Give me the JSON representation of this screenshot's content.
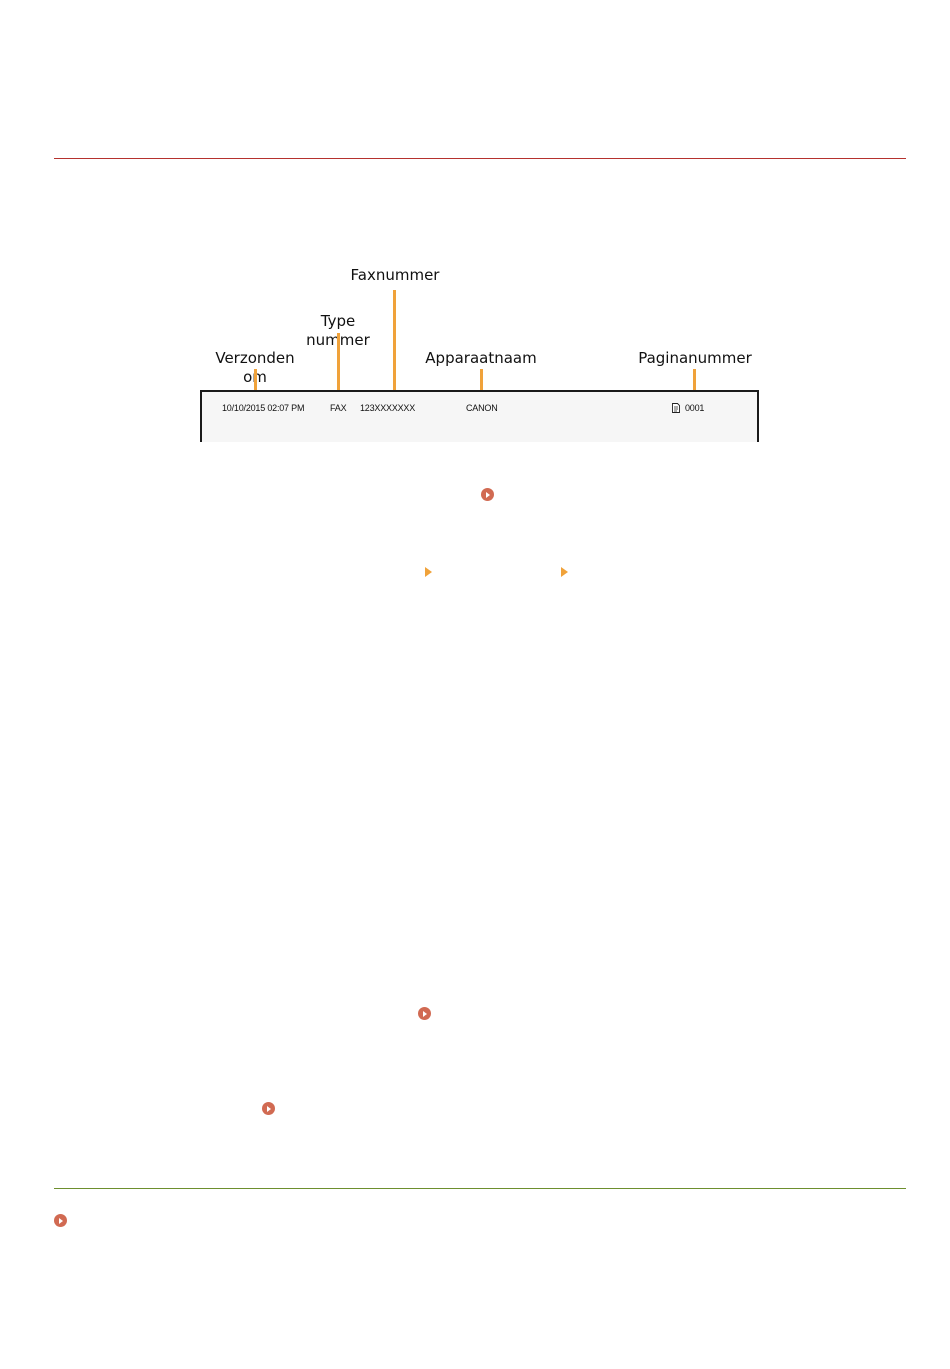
{
  "diagram": {
    "labels": {
      "sent_at": "Verzonden\nom",
      "number_type": "Type\nnummer",
      "fax_number": "Faxnummer",
      "device_name": "Apparaatnaam",
      "page_number": "Paginanummer"
    },
    "strip": {
      "datetime": "10/10/2015  02:07 PM",
      "type": "FAX",
      "fax": "123XXXXXXX",
      "name": "CANON",
      "page": "0001"
    },
    "colors": {
      "leader": "#f0a23a",
      "top_rule": "#b5322e",
      "bottom_rule": "#6d8f2e",
      "link_icon": "#d16a52"
    }
  },
  "icons": {
    "link": "circle-play-icon",
    "menu_step": "triangle-right-icon",
    "page": "document-icon"
  }
}
